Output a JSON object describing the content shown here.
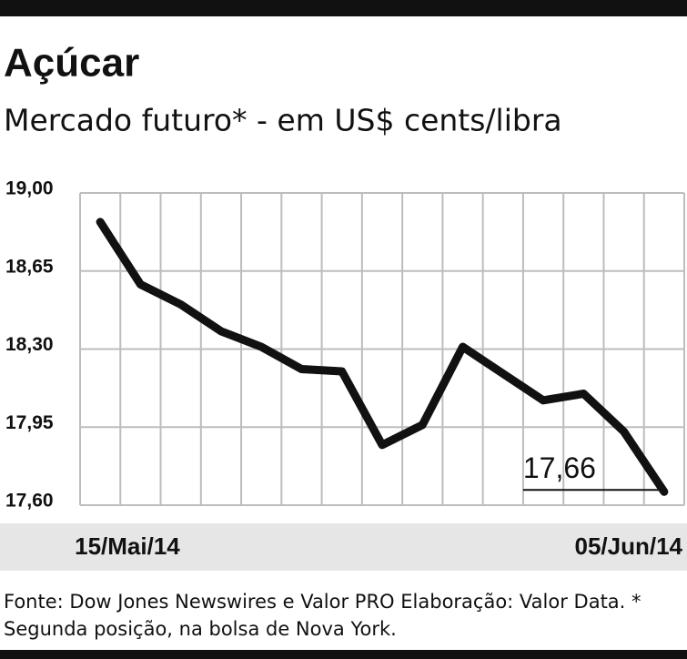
{
  "chart_data": {
    "type": "line",
    "title": "Açúcar",
    "subtitle": "Mercado futuro* - em US$ cents/libra",
    "categories": [
      "15/Mai/14",
      null,
      null,
      null,
      null,
      null,
      null,
      null,
      null,
      null,
      null,
      null,
      null,
      null,
      "05/Jun/14"
    ],
    "values": [
      18.87,
      18.59,
      18.5,
      18.38,
      18.31,
      18.21,
      18.2,
      17.87,
      17.96,
      18.31,
      18.19,
      18.07,
      18.1,
      17.93,
      17.66
    ],
    "value_labels": [
      null,
      null,
      null,
      null,
      null,
      null,
      null,
      null,
      null,
      null,
      null,
      null,
      null,
      null,
      "17,66"
    ],
    "color": "#111111",
    "ylim": [
      17.6,
      19.0
    ],
    "yticks": [
      {
        "value": 17.6,
        "label": "17,60"
      },
      {
        "value": 17.95,
        "label": "17,95"
      },
      {
        "value": 18.3,
        "label": "18,30"
      },
      {
        "value": 18.65,
        "label": "18,65"
      },
      {
        "value": 19.0,
        "label": "19,00"
      }
    ],
    "grid": true,
    "source": "Fonte: Dow Jones Newswires e Valor PRO Elaboração: Valor Data. * Segunda posição, na bolsa de Nova York."
  }
}
